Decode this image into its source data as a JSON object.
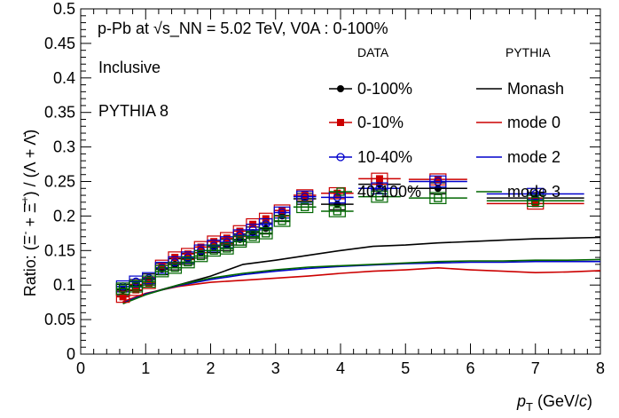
{
  "chart_data": {
    "type": "scatter",
    "xlabel": "p_T (GeV/c)",
    "ylabel": "Ratio: (Ξ⁻ + Ξ̄⁺) / (Λ + Λ̄)",
    "xlim": [
      0,
      8
    ],
    "ylim": [
      0,
      0.5
    ],
    "x_ticks": [
      "0",
      "1",
      "2",
      "3",
      "4",
      "5",
      "6",
      "7",
      "8"
    ],
    "y_ticks": [
      "0",
      "0.05",
      "0.1",
      "0.15",
      "0.2",
      "0.25",
      "0.3",
      "0.35",
      "0.4",
      "0.45",
      "0.5"
    ],
    "grid": false,
    "annotations": {
      "system": "p-Pb at √s_NN = 5.02 TeV,  V0A : 0-100%",
      "selection": "Inclusive",
      "generator": "PYTHIA 8"
    },
    "legend_headers": {
      "data": "DATA",
      "model": "PYTHIA"
    },
    "data_series": [
      {
        "name": "0-100%",
        "color": "#000000",
        "marker": "filled-circle",
        "x": [
          0.65,
          0.85,
          1.05,
          1.25,
          1.45,
          1.65,
          1.85,
          2.05,
          2.25,
          2.45,
          2.65,
          2.85,
          3.1,
          3.45,
          3.95,
          4.6,
          5.5,
          7.0
        ],
        "y": [
          0.093,
          0.1,
          0.108,
          0.123,
          0.13,
          0.138,
          0.147,
          0.155,
          0.158,
          0.166,
          0.176,
          0.182,
          0.2,
          0.225,
          0.217,
          0.246,
          0.24,
          0.226
        ]
      },
      {
        "name": "0-10%",
        "color": "#cc0000",
        "marker": "filled-square",
        "x": [
          0.65,
          0.85,
          1.05,
          1.25,
          1.45,
          1.65,
          1.85,
          2.05,
          2.25,
          2.45,
          2.65,
          2.85,
          3.1,
          3.45,
          3.95,
          4.6,
          5.5,
          7.0
        ],
        "y": [
          0.083,
          0.093,
          0.103,
          0.128,
          0.14,
          0.145,
          0.155,
          0.163,
          0.168,
          0.178,
          0.188,
          0.196,
          0.208,
          0.23,
          0.233,
          0.254,
          0.253,
          0.218
        ]
      },
      {
        "name": "10-40%",
        "color": "#0000cc",
        "marker": "open-circle",
        "x": [
          0.65,
          0.85,
          1.05,
          1.25,
          1.45,
          1.65,
          1.85,
          2.05,
          2.25,
          2.45,
          2.65,
          2.85,
          3.1,
          3.45,
          3.95,
          4.6,
          5.5,
          7.0
        ],
        "y": [
          0.098,
          0.105,
          0.11,
          0.125,
          0.133,
          0.14,
          0.15,
          0.157,
          0.162,
          0.172,
          0.18,
          0.188,
          0.205,
          0.228,
          0.227,
          0.24,
          0.25,
          0.232
        ]
      },
      {
        "name": "40-100%",
        "color": "#006600",
        "marker": "open-square",
        "x": [
          0.65,
          0.85,
          1.05,
          1.25,
          1.45,
          1.65,
          1.85,
          2.05,
          2.25,
          2.45,
          2.65,
          2.85,
          3.1,
          3.45,
          3.95,
          4.6,
          5.5,
          7.0
        ],
        "y": [
          0.095,
          0.098,
          0.105,
          0.12,
          0.125,
          0.133,
          0.142,
          0.15,
          0.153,
          0.163,
          0.17,
          0.175,
          0.193,
          0.213,
          0.207,
          0.228,
          0.226,
          0.222
        ]
      }
    ],
    "model_series": [
      {
        "name": "Monash",
        "color": "#000000",
        "x": [
          0.65,
          1.0,
          1.5,
          2.0,
          2.5,
          3.0,
          3.5,
          4.0,
          4.5,
          5.0,
          5.5,
          6.0,
          6.5,
          7.0,
          7.5,
          8.0
        ],
        "y": [
          0.075,
          0.087,
          0.1,
          0.113,
          0.13,
          0.136,
          0.143,
          0.15,
          0.156,
          0.158,
          0.161,
          0.163,
          0.165,
          0.167,
          0.168,
          0.169
        ]
      },
      {
        "name": "mode 0",
        "color": "#cc0000",
        "x": [
          0.65,
          1.0,
          1.5,
          2.0,
          2.5,
          3.0,
          3.5,
          4.0,
          4.5,
          5.0,
          5.5,
          6.0,
          6.5,
          7.0,
          7.5,
          8.0
        ],
        "y": [
          0.076,
          0.088,
          0.098,
          0.104,
          0.107,
          0.11,
          0.113,
          0.117,
          0.12,
          0.122,
          0.125,
          0.122,
          0.12,
          0.118,
          0.119,
          0.121
        ]
      },
      {
        "name": "mode 2",
        "color": "#0000cc",
        "x": [
          0.65,
          1.0,
          1.5,
          2.0,
          2.5,
          3.0,
          3.5,
          4.0,
          4.5,
          5.0,
          5.5,
          6.0,
          6.5,
          7.0,
          7.5,
          8.0
        ],
        "y": [
          0.074,
          0.087,
          0.099,
          0.108,
          0.115,
          0.12,
          0.124,
          0.127,
          0.129,
          0.131,
          0.132,
          0.133,
          0.133,
          0.134,
          0.134,
          0.134
        ]
      },
      {
        "name": "mode 3",
        "color": "#006600",
        "x": [
          0.65,
          1.0,
          1.5,
          2.0,
          2.5,
          3.0,
          3.5,
          4.0,
          4.5,
          5.0,
          5.5,
          6.0,
          6.5,
          7.0,
          7.5,
          8.0
        ],
        "y": [
          0.073,
          0.086,
          0.1,
          0.11,
          0.117,
          0.122,
          0.126,
          0.128,
          0.13,
          0.132,
          0.134,
          0.135,
          0.135,
          0.136,
          0.136,
          0.137
        ]
      }
    ]
  }
}
